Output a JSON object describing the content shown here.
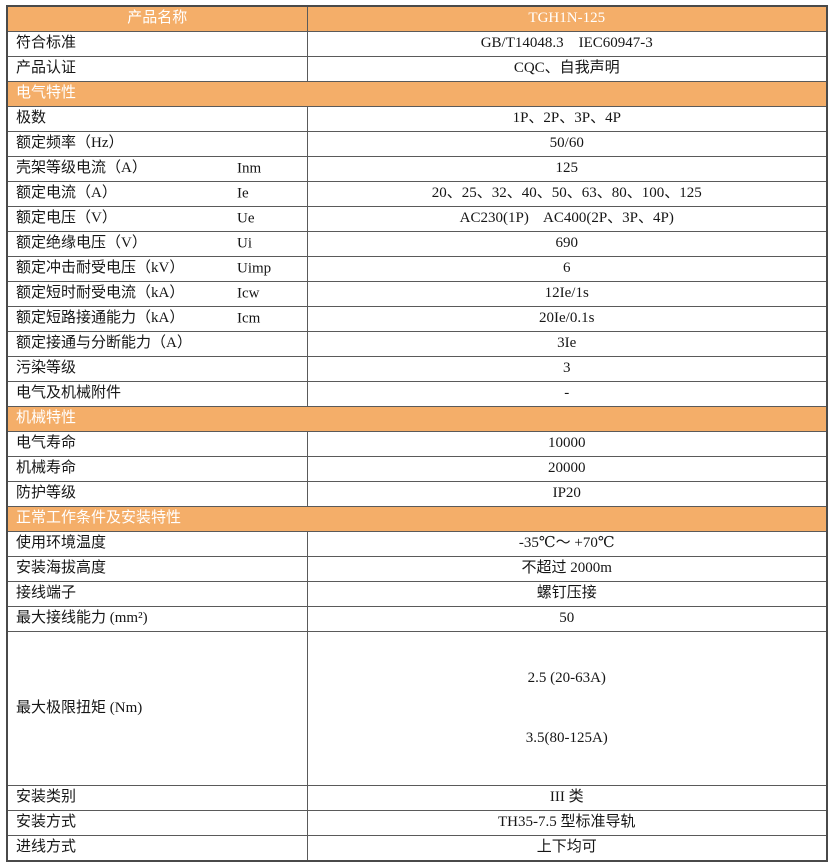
{
  "colors": {
    "header_bg": "#f4ae69",
    "header_text": "#ffffff",
    "body_text": "#161616",
    "border": "#5a5a5a"
  },
  "table": {
    "header": {
      "left": "产品名称",
      "right": "TGH1N-125"
    },
    "rows": [
      {
        "type": "data",
        "label": "符合标准",
        "value": "GB/T14048.3    IEC60947-3"
      },
      {
        "type": "data",
        "label": "产品认证",
        "value": "CQC、自我声明"
      },
      {
        "type": "section",
        "label": "电气特性"
      },
      {
        "type": "data",
        "label": "极数",
        "value": "1P、2P、3P、4P"
      },
      {
        "type": "data",
        "label": "额定频率（Hz）",
        "value": "50/60"
      },
      {
        "type": "data",
        "label": "壳架等级电流（A）",
        "symbol": "Inm",
        "value": "125"
      },
      {
        "type": "data",
        "label": "额定电流（A）",
        "symbol": "Ie",
        "value": "20、25、32、40、50、63、80、100、125"
      },
      {
        "type": "data",
        "label": "额定电压（V）",
        "symbol": "Ue",
        "value": "AC230(1P)    AC400(2P、3P、4P)"
      },
      {
        "type": "data",
        "label": "额定绝缘电压（V）",
        "symbol": "Ui",
        "value": "690"
      },
      {
        "type": "data",
        "label": "额定冲击耐受电压（kV）",
        "symbol": "Uimp",
        "value": "6"
      },
      {
        "type": "data",
        "label": "额定短时耐受电流（kA）",
        "symbol": "Icw",
        "value": "12Ie/1s"
      },
      {
        "type": "data",
        "label": "额定短路接通能力（kA）",
        "symbol": "Icm",
        "value": "20Ie/0.1s"
      },
      {
        "type": "data",
        "label": "额定接通与分断能力（A）",
        "value": "3Ie"
      },
      {
        "type": "data",
        "label": "污染等级",
        "value": "3"
      },
      {
        "type": "data",
        "label": "电气及机械附件",
        "value": "-"
      },
      {
        "type": "section",
        "label": "机械特性"
      },
      {
        "type": "data",
        "label": "电气寿命",
        "value": "10000"
      },
      {
        "type": "data",
        "label": "机械寿命",
        "value": "20000"
      },
      {
        "type": "data",
        "label": "防护等级",
        "value": "IP20"
      },
      {
        "type": "section",
        "label": "正常工作条件及安装特性"
      },
      {
        "type": "data",
        "label": "使用环境温度",
        "value": "-35℃～ +70℃"
      },
      {
        "type": "data",
        "label": "安装海拔高度",
        "value": "不超过 2000m"
      },
      {
        "type": "data",
        "label": "接线端子",
        "value": "螺钉压接"
      },
      {
        "type": "data",
        "label": "最大接线能力 (mm²)",
        "value": "50"
      },
      {
        "type": "multi",
        "label": "最大极限扭矩 (Nm)",
        "values": [
          "2.5 (20-63A)",
          "3.5(80-125A)"
        ]
      },
      {
        "type": "data",
        "label": "安装类别",
        "value": "III 类"
      },
      {
        "type": "data",
        "label": "安装方式",
        "value": "TH35-7.5 型标准导轨"
      },
      {
        "type": "data",
        "label": "进线方式",
        "value": "上下均可"
      }
    ]
  }
}
